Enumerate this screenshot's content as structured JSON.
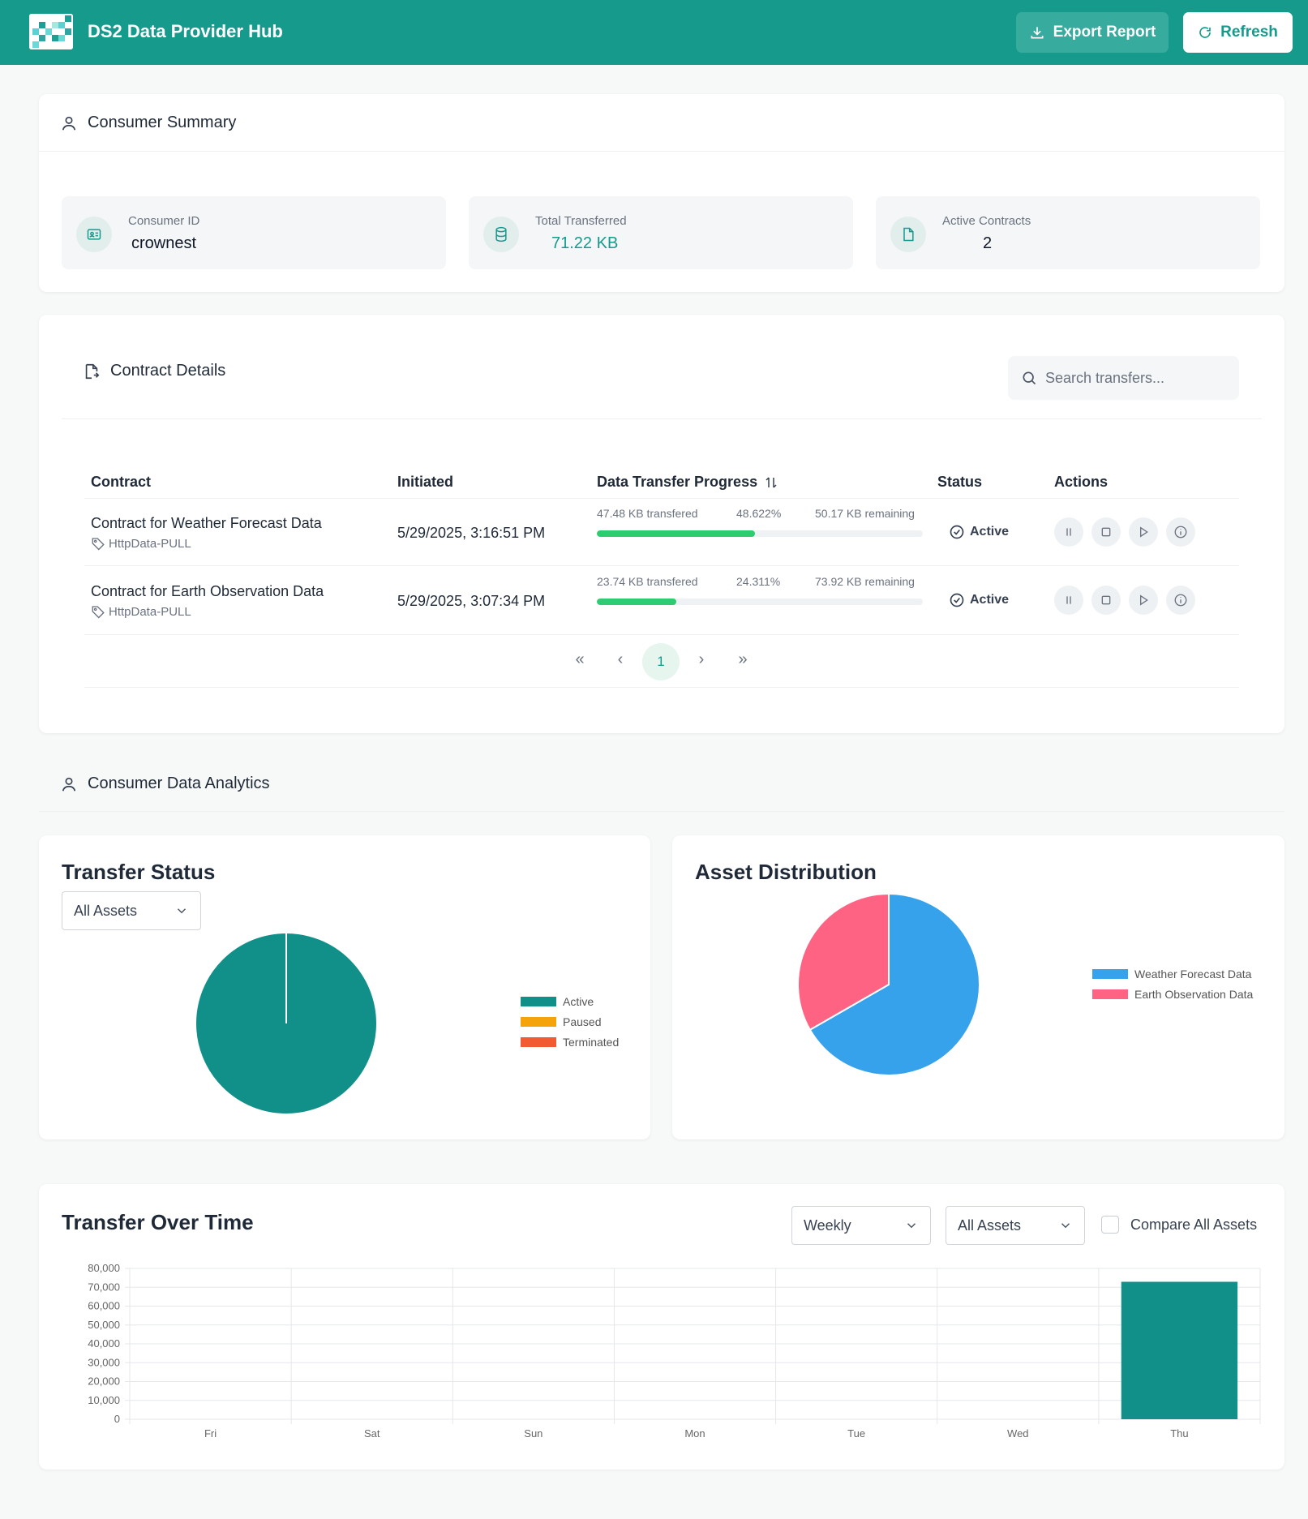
{
  "header": {
    "title": "DS2 Data Provider Hub",
    "export_label": "Export Report",
    "refresh_label": "Refresh",
    "color": "#159a8c"
  },
  "summary": {
    "title": "Consumer Summary",
    "consumer_id_label": "Consumer ID",
    "consumer_id": "crownest",
    "total_label": "Total Transferred",
    "total": "71.22 KB",
    "contracts_label": "Active Contracts",
    "contracts": "2"
  },
  "contracts": {
    "title": "Contract Details",
    "search_placeholder": "Search transfers...",
    "columns": [
      "Contract",
      "Initiated",
      "Data Transfer Progress",
      "Status",
      "Actions"
    ],
    "rows": [
      {
        "name": "Contract for Weather Forecast Data",
        "type": "HttpData-PULL",
        "initiated": "5/29/2025, 3:16:51 PM",
        "transferred": "47.48 KB transfered",
        "percent_label": "48.622%",
        "percent": 48.622,
        "remaining": "50.17 KB remaining",
        "status": "Active"
      },
      {
        "name": "Contract for Earth Observation Data",
        "type": "HttpData-PULL",
        "initiated": "5/29/2025, 3:07:34 PM",
        "transferred": "23.74 KB transfered",
        "percent_label": "24.311%",
        "percent": 24.311,
        "remaining": "73.92 KB remaining",
        "status": "Active"
      }
    ],
    "pagination": {
      "first": "«",
      "prev": "‹",
      "current": "1",
      "next": "›",
      "last": "»"
    }
  },
  "analytics": {
    "title": "Consumer Data Analytics"
  },
  "chart_data": [
    {
      "type": "pie",
      "title": "Transfer Status",
      "filter": "All Assets",
      "labels": [
        "Active",
        "Paused",
        "Terminated"
      ],
      "values": [
        100,
        0,
        0
      ],
      "colors": [
        "#11908a",
        "#f5a30a",
        "#f25a32"
      ]
    },
    {
      "type": "pie",
      "title": "Asset Distribution",
      "labels": [
        "Weather Forecast Data",
        "Earth Observation Data"
      ],
      "values": [
        66.7,
        33.3
      ],
      "colors": [
        "#36a2eb",
        "#ff6384"
      ]
    },
    {
      "type": "bar",
      "title": "Transfer Over Time",
      "period": "Weekly",
      "filter": "All Assets",
      "compare_label": "Compare All Assets",
      "categories": [
        "Fri",
        "Sat",
        "Sun",
        "Mon",
        "Tue",
        "Wed",
        "Thu"
      ],
      "values": [
        0,
        0,
        0,
        0,
        0,
        0,
        72900
      ],
      "ylim": [
        0,
        80000
      ],
      "yticks": [
        "80,000",
        "70,000",
        "60,000",
        "50,000",
        "40,000",
        "30,000",
        "20,000",
        "10,000",
        "0"
      ],
      "color": "#11908a",
      "grid": true
    }
  ]
}
